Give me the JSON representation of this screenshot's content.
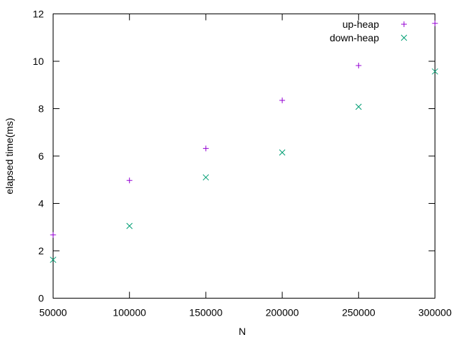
{
  "chart_data": {
    "type": "scatter",
    "xlabel": "N",
    "ylabel": "elapsed time(ms)",
    "xlim": [
      50000,
      300000
    ],
    "ylim": [
      0,
      12
    ],
    "xticks": [
      "50000",
      "100000",
      "150000",
      "200000",
      "250000",
      "300000"
    ],
    "yticks": [
      "0",
      "2",
      "4",
      "6",
      "8",
      "10",
      "12"
    ],
    "grid": false,
    "legend_position": "top-right",
    "series": [
      {
        "name": "up-heap",
        "marker": "plus",
        "color": "#9400d3",
        "x": [
          50000,
          100000,
          150000,
          200000,
          250000,
          300000
        ],
        "y": [
          2.67,
          4.97,
          6.32,
          8.35,
          9.82,
          11.6
        ]
      },
      {
        "name": "down-heap",
        "marker": "cross",
        "color": "#009e73",
        "x": [
          50000,
          100000,
          150000,
          200000,
          250000,
          300000
        ],
        "y": [
          1.62,
          3.05,
          5.1,
          6.15,
          8.08,
          9.57
        ]
      }
    ]
  }
}
